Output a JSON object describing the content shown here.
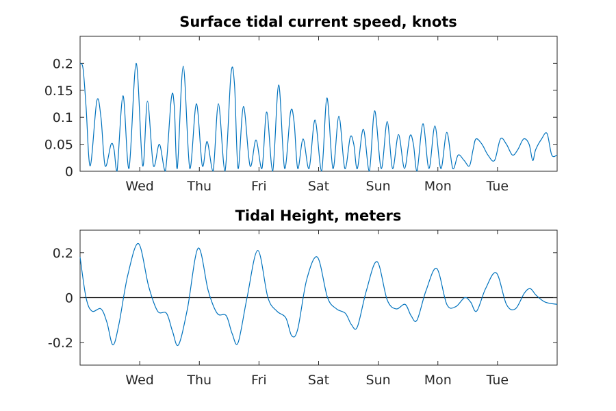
{
  "colors": {
    "series": "#0072BD",
    "axis": "#262626",
    "zero_line": "#000000"
  },
  "chart_data": [
    {
      "type": "line",
      "title": "Surface tidal current speed, knots",
      "xlabel": "",
      "ylabel": "",
      "x_unit": "days",
      "xlim": [
        0,
        8
      ],
      "ylim": [
        0,
        0.25
      ],
      "yticks": [
        0,
        0.05,
        0.1,
        0.15,
        0.2
      ],
      "ytick_labels": [
        "0",
        "0.05",
        "0.1",
        "0.15",
        "0.2"
      ],
      "xticks": [
        1,
        2,
        3,
        4,
        5,
        6,
        7
      ],
      "xtick_labels": [
        "Wed",
        "Thu",
        "Fri",
        "Sat",
        "Sun",
        "Mon",
        "Tue"
      ],
      "grid": false,
      "series": [
        {
          "x": [
            0,
            0.05,
            0.1,
            0.17,
            0.28,
            0.35,
            0.42,
            0.52,
            0.57,
            0.62,
            0.72,
            0.82,
            0.94,
            1.05,
            1.13,
            1.23,
            1.33,
            1.43,
            1.53,
            1.58,
            1.63,
            1.73,
            1.84,
            1.95,
            2.05,
            2.13,
            2.23,
            2.32,
            2.43,
            2.53,
            2.59,
            2.65,
            2.74,
            2.85,
            2.95,
            3.05,
            3.13,
            3.23,
            3.33,
            3.43,
            3.53,
            3.59,
            3.65,
            3.74,
            3.84,
            3.94,
            4.05,
            4.14,
            4.24,
            4.34,
            4.44,
            4.53,
            4.59,
            4.65,
            4.75,
            4.85,
            4.94,
            5.05,
            5.15,
            5.24,
            5.34,
            5.44,
            5.53,
            5.59,
            5.65,
            5.75,
            5.85,
            5.95,
            6.05,
            6.15,
            6.25,
            6.34,
            6.44,
            6.53,
            6.59,
            6.64,
            6.74,
            6.84,
            6.95,
            7.05,
            7.15,
            7.25,
            7.34,
            7.44,
            7.53,
            7.59,
            7.64,
            7.74,
            7.83,
            7.91,
            8.0
          ],
          "y": [
            0.2,
            0.19,
            0.12,
            0.01,
            0.13,
            0.1,
            0.01,
            0.05,
            0.04,
            0.0,
            0.14,
            0.005,
            0.2,
            0.01,
            0.13,
            0.01,
            0.05,
            0.0,
            0.135,
            0.12,
            0.005,
            0.195,
            0.005,
            0.125,
            0.01,
            0.055,
            0.0,
            0.125,
            0.0,
            0.18,
            0.16,
            0.005,
            0.12,
            0.01,
            0.058,
            0.005,
            0.11,
            0.0,
            0.16,
            0.005,
            0.11,
            0.09,
            0.005,
            0.06,
            0.005,
            0.095,
            0.0,
            0.136,
            0.005,
            0.102,
            0.005,
            0.063,
            0.05,
            0.005,
            0.078,
            0.0,
            0.112,
            0.005,
            0.092,
            0.005,
            0.068,
            0.005,
            0.065,
            0.05,
            0.0,
            0.088,
            0.005,
            0.084,
            0.005,
            0.072,
            0.005,
            0.03,
            0.02,
            0.01,
            0.04,
            0.06,
            0.05,
            0.03,
            0.02,
            0.06,
            0.05,
            0.03,
            0.04,
            0.06,
            0.05,
            0.02,
            0.04,
            0.06,
            0.07,
            0.03,
            0.03
          ]
        }
      ]
    },
    {
      "type": "line",
      "title": "Tidal Height, meters",
      "xlabel": "",
      "ylabel": "",
      "x_unit": "days",
      "xlim": [
        0,
        8
      ],
      "ylim": [
        -0.3,
        0.3
      ],
      "yticks": [
        -0.2,
        0,
        0.2
      ],
      "ytick_labels": [
        "-0.2",
        "0",
        "0.2"
      ],
      "xticks": [
        1,
        2,
        3,
        4,
        5,
        6,
        7
      ],
      "xtick_labels": [
        "Wed",
        "Thu",
        "Fri",
        "Sat",
        "Sun",
        "Mon",
        "Tue"
      ],
      "grid": false,
      "zero_line": true,
      "series": [
        {
          "x": [
            0,
            0.1,
            0.2,
            0.35,
            0.45,
            0.55,
            0.65,
            0.8,
            0.98,
            1.15,
            1.3,
            1.45,
            1.55,
            1.65,
            1.8,
            1.98,
            2.15,
            2.3,
            2.45,
            2.55,
            2.65,
            2.8,
            2.98,
            3.15,
            3.3,
            3.45,
            3.55,
            3.65,
            3.8,
            3.98,
            4.15,
            4.3,
            4.45,
            4.55,
            4.65,
            4.8,
            4.98,
            5.15,
            5.3,
            5.45,
            5.55,
            5.65,
            5.8,
            5.98,
            6.15,
            6.3,
            6.45,
            6.55,
            6.65,
            6.8,
            6.98,
            7.15,
            7.3,
            7.45,
            7.55,
            7.65,
            7.8,
            8.0
          ],
          "y": [
            0.18,
            0.0,
            -0.06,
            -0.05,
            -0.11,
            -0.21,
            -0.12,
            0.1,
            0.24,
            0.05,
            -0.06,
            -0.07,
            -0.15,
            -0.21,
            -0.05,
            0.22,
            0.03,
            -0.07,
            -0.08,
            -0.16,
            -0.2,
            0.0,
            0.21,
            0.0,
            -0.06,
            -0.09,
            -0.17,
            -0.14,
            0.08,
            0.18,
            0.0,
            -0.05,
            -0.07,
            -0.12,
            -0.13,
            0.03,
            0.16,
            -0.01,
            -0.05,
            -0.03,
            -0.08,
            -0.1,
            0.03,
            0.13,
            -0.03,
            -0.04,
            0.0,
            -0.02,
            -0.06,
            0.04,
            0.11,
            -0.03,
            -0.05,
            0.02,
            0.04,
            0.01,
            -0.02,
            -0.03
          ]
        }
      ]
    }
  ]
}
